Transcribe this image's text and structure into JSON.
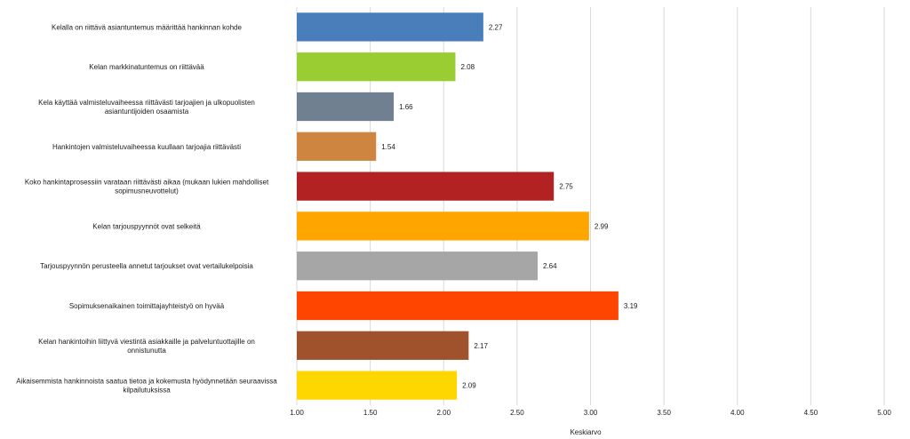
{
  "chart_data": {
    "type": "bar",
    "orientation": "horizontal",
    "categories": [
      "Kelalla on riittävä asiantuntemus määrittää hankinnan kohde",
      "Kelan markkinatuntemus on riittävää",
      "Kela käyttää valmisteluvaiheessa riittävästi tarjoajien ja ulkopuolisten asiantuntijoiden osaamista",
      "Hankintojen valmisteluvaiheessa kuullaan tarjoajia riittävästi",
      "Koko hankintaprosessiin varataan riittävästi aikaa (mukaan lukien mahdolliset sopimusneuvottelut)",
      "Kelan tarjouspyynnöt ovat selkeitä",
      "Tarjouspyynnön perusteella annetut tarjoukset ovat vertailukelpoisia",
      "Sopimuksenaikainen toimittajayhteistyö on hyvää",
      "Kelan hankintoihin liittyvä viestintä asiakkaille ja palveluntuottajille on onnistunutta",
      "Aikaisemmista hankinnoista saatua tietoa ja kokemusta hyödynnetään seuraavissa kilpailutuksissa"
    ],
    "values": [
      2.27,
      2.08,
      1.66,
      1.54,
      2.75,
      2.99,
      2.64,
      3.19,
      2.17,
      2.09
    ],
    "value_labels": [
      "2.27",
      "2.08",
      "1.66",
      "1.54",
      "2.75",
      "2.99",
      "2.64",
      "3.19",
      "2.17",
      "2.09"
    ],
    "colors": [
      "#4a7ebb",
      "#9acd32",
      "#708090",
      "#cd853f",
      "#b22222",
      "#ffa500",
      "#a6a6a6",
      "#ff4500",
      "#a0522d",
      "#ffd700"
    ],
    "xlim": [
      1.0,
      5.0
    ],
    "xticks": [
      "1.00",
      "1.50",
      "2.00",
      "2.50",
      "3.00",
      "3.50",
      "4.00",
      "4.50",
      "5.00"
    ],
    "xlabel": "Keskiarvo",
    "ylabel": "",
    "title": "",
    "grid": true,
    "legend": "none"
  }
}
